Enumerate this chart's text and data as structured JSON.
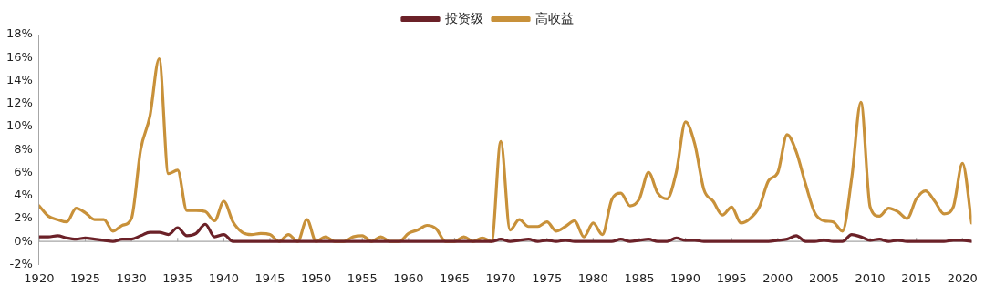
{
  "chart_data": {
    "type": "line",
    "legend": "top",
    "grid": false,
    "marker": "none",
    "line_style": "solid",
    "x": [
      1920,
      1921,
      1922,
      1923,
      1924,
      1925,
      1926,
      1927,
      1928,
      1929,
      1930,
      1931,
      1932,
      1933,
      1934,
      1935,
      1936,
      1937,
      1938,
      1939,
      1940,
      1941,
      1942,
      1943,
      1944,
      1945,
      1946,
      1947,
      1948,
      1949,
      1950,
      1951,
      1952,
      1953,
      1954,
      1955,
      1956,
      1957,
      1958,
      1959,
      1960,
      1961,
      1962,
      1963,
      1964,
      1965,
      1966,
      1967,
      1968,
      1969,
      1970,
      1971,
      1972,
      1973,
      1974,
      1975,
      1976,
      1977,
      1978,
      1979,
      1980,
      1981,
      1982,
      1983,
      1984,
      1985,
      1986,
      1987,
      1988,
      1989,
      1990,
      1991,
      1992,
      1993,
      1994,
      1995,
      1996,
      1997,
      1998,
      1999,
      2000,
      2001,
      2002,
      2003,
      2004,
      2005,
      2006,
      2007,
      2008,
      2009,
      2010,
      2011,
      2012,
      2013,
      2014,
      2015,
      2016,
      2017,
      2018,
      2019,
      2020,
      2021
    ],
    "series": [
      {
        "name": "投资级",
        "color": "#6b2128",
        "values": [
          0.4,
          0.4,
          0.5,
          0.3,
          0.2,
          0.3,
          0.2,
          0.1,
          0.0,
          0.2,
          0.2,
          0.5,
          0.8,
          0.8,
          0.6,
          1.2,
          0.5,
          0.7,
          1.5,
          0.4,
          0.6,
          0.0,
          0.0,
          0.0,
          0.0,
          0.0,
          0.0,
          0.0,
          0.0,
          0.0,
          0.0,
          0.0,
          0.0,
          0.0,
          0.0,
          0.0,
          0.0,
          0.0,
          0.0,
          0.0,
          0.0,
          0.0,
          0.0,
          0.0,
          0.0,
          0.0,
          0.0,
          0.0,
          0.0,
          0.0,
          0.2,
          0.0,
          0.1,
          0.2,
          0.0,
          0.1,
          0.0,
          0.1,
          0.0,
          0.0,
          0.0,
          0.0,
          0.0,
          0.2,
          0.0,
          0.1,
          0.2,
          0.0,
          0.0,
          0.3,
          0.1,
          0.1,
          0.0,
          0.0,
          0.0,
          0.0,
          0.0,
          0.0,
          0.0,
          0.0,
          0.1,
          0.2,
          0.5,
          0.0,
          0.0,
          0.1,
          0.0,
          0.0,
          0.6,
          0.4,
          0.1,
          0.2,
          0.0,
          0.1,
          0.0,
          0.0,
          0.0,
          0.0,
          0.0,
          0.1,
          0.1,
          0.0
        ]
      },
      {
        "name": "高收益",
        "color": "#c8913a",
        "values": [
          3.1,
          2.2,
          1.9,
          1.7,
          2.9,
          2.5,
          1.9,
          1.9,
          0.9,
          1.4,
          2.0,
          8.0,
          10.9,
          15.9,
          5.9,
          6.2,
          2.7,
          2.7,
          2.6,
          1.8,
          3.5,
          1.7,
          0.8,
          0.6,
          0.7,
          0.6,
          0.0,
          0.6,
          0.0,
          1.9,
          0.0,
          0.4,
          0.0,
          0.0,
          0.4,
          0.5,
          0.0,
          0.4,
          0.0,
          0.0,
          0.7,
          1.0,
          1.4,
          1.1,
          0.0,
          0.0,
          0.4,
          0.0,
          0.3,
          0.0,
          8.7,
          1.0,
          1.9,
          1.3,
          1.3,
          1.7,
          0.9,
          1.3,
          1.8,
          0.4,
          1.6,
          0.6,
          3.6,
          4.2,
          3.1,
          3.7,
          6.0,
          4.2,
          3.7,
          6.0,
          10.4,
          8.5,
          4.5,
          3.5,
          2.3,
          3.0,
          1.6,
          2.0,
          3.0,
          5.3,
          6.0,
          9.3,
          7.8,
          5.0,
          2.5,
          1.8,
          1.7,
          0.9,
          5.5,
          12.1,
          3.0,
          2.2,
          2.9,
          2.6,
          2.0,
          3.7,
          4.4,
          3.5,
          2.4,
          3.0,
          6.8,
          1.6
        ]
      }
    ],
    "xlim": [
      1920,
      2021
    ],
    "xticks": [
      1920,
      1925,
      1930,
      1935,
      1940,
      1945,
      1950,
      1955,
      1960,
      1965,
      1970,
      1975,
      1980,
      1985,
      1990,
      1995,
      2000,
      2005,
      2010,
      2015,
      2020
    ],
    "ylim": [
      -2,
      18
    ],
    "yticks": [
      {
        "value": -2,
        "label": "-2%"
      },
      {
        "value": 0,
        "label": "0%"
      },
      {
        "value": 2,
        "label": "2%"
      },
      {
        "value": 4,
        "label": "4%"
      },
      {
        "value": 6,
        "label": "6%"
      },
      {
        "value": 8,
        "label": "8%"
      },
      {
        "value": 10,
        "label": "10%"
      },
      {
        "value": 12,
        "label": "12%"
      },
      {
        "value": 14,
        "label": "14%"
      },
      {
        "value": 16,
        "label": "16%"
      },
      {
        "value": 18,
        "label": "18%"
      }
    ]
  }
}
